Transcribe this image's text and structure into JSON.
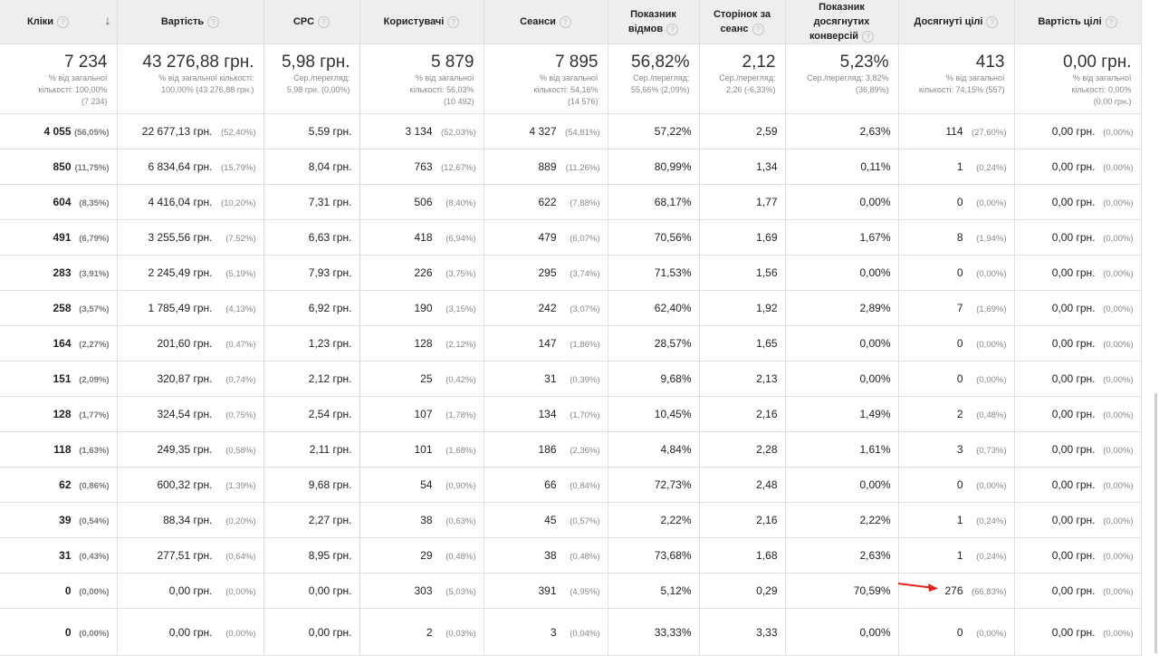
{
  "columns": [
    {
      "label": "Кліки",
      "sorted": true
    },
    {
      "label": "Вартість"
    },
    {
      "label": "CPC"
    },
    {
      "label": "Користувачі"
    },
    {
      "label": "Сеанси"
    },
    {
      "label": "Показник відмов"
    },
    {
      "label": "Сторінок за сеанс"
    },
    {
      "label": "Показник досягнутих конверсій"
    },
    {
      "label": "Досягнуті цілі"
    },
    {
      "label": "Вартість цілі"
    }
  ],
  "help_glyph": "?",
  "sort_glyph": "↓",
  "totals": [
    {
      "value": "7 234",
      "lines": [
        "% від загальної",
        "кількості: 100,00%",
        "(7 234)"
      ]
    },
    {
      "value": "43 276,88 грн.",
      "lines": [
        "% від загальної кількості:",
        "100,00% (43 276,88 грн.)"
      ]
    },
    {
      "value": "5,98 грн.",
      "lines": [
        "Сер./перегляд:",
        "5,98 грн. (0,00%)"
      ]
    },
    {
      "value": "5 879",
      "lines": [
        "% від загальної",
        "кількості: 56,03%",
        "(10 492)"
      ]
    },
    {
      "value": "7 895",
      "lines": [
        "% від загальної",
        "кількості: 54,16%",
        "(14 576)"
      ]
    },
    {
      "value": "56,82%",
      "lines": [
        "Сер./перегляд:",
        "55,66% (2,09%)"
      ]
    },
    {
      "value": "2,12",
      "lines": [
        "Сер./перегляд:",
        "2,26 (-6,33%)"
      ]
    },
    {
      "value": "5,23%",
      "lines": [
        "Сер./перегляд: 3,82%",
        "(36,89%)"
      ]
    },
    {
      "value": "413",
      "lines": [
        "% від загальної",
        "кількості: 74,15% (557)"
      ]
    },
    {
      "value": "0,00 грн.",
      "lines": [
        "% від загальної",
        "кількості: 0,00%",
        "(0,00 грн.)"
      ]
    }
  ],
  "rows": [
    [
      [
        "4 055",
        "(56,05%)"
      ],
      [
        "22 677,13 грн.",
        "(52,40%)"
      ],
      [
        "5,59 грн."
      ],
      [
        "3 134",
        "(52,03%)"
      ],
      [
        "4 327",
        "(54,81%)"
      ],
      [
        "57,22%"
      ],
      [
        "2,59"
      ],
      [
        "2,63%"
      ],
      [
        "114",
        "(27,60%)"
      ],
      [
        "0,00 грн.",
        "(0,00%)"
      ]
    ],
    [
      [
        "850",
        "(11,75%)"
      ],
      [
        "6 834,64 грн.",
        "(15,79%)"
      ],
      [
        "8,04 грн."
      ],
      [
        "763",
        "(12,67%)"
      ],
      [
        "889",
        "(11,26%)"
      ],
      [
        "80,99%"
      ],
      [
        "1,34"
      ],
      [
        "0,11%"
      ],
      [
        "1",
        "(0,24%)"
      ],
      [
        "0,00 грн.",
        "(0,00%)"
      ]
    ],
    [
      [
        "604",
        "(8,35%)"
      ],
      [
        "4 416,04 грн.",
        "(10,20%)"
      ],
      [
        "7,31 грн."
      ],
      [
        "506",
        "(8,40%)"
      ],
      [
        "622",
        "(7,88%)"
      ],
      [
        "68,17%"
      ],
      [
        "1,77"
      ],
      [
        "0,00%"
      ],
      [
        "0",
        "(0,00%)"
      ],
      [
        "0,00 грн.",
        "(0,00%)"
      ]
    ],
    [
      [
        "491",
        "(6,79%)"
      ],
      [
        "3 255,56 грн.",
        "(7,52%)"
      ],
      [
        "6,63 грн."
      ],
      [
        "418",
        "(6,94%)"
      ],
      [
        "479",
        "(6,07%)"
      ],
      [
        "70,56%"
      ],
      [
        "1,69"
      ],
      [
        "1,67%"
      ],
      [
        "8",
        "(1,94%)"
      ],
      [
        "0,00 грн.",
        "(0,00%)"
      ]
    ],
    [
      [
        "283",
        "(3,91%)"
      ],
      [
        "2 245,49 грн.",
        "(5,19%)"
      ],
      [
        "7,93 грн."
      ],
      [
        "226",
        "(3,75%)"
      ],
      [
        "295",
        "(3,74%)"
      ],
      [
        "71,53%"
      ],
      [
        "1,56"
      ],
      [
        "0,00%"
      ],
      [
        "0",
        "(0,00%)"
      ],
      [
        "0,00 грн.",
        "(0,00%)"
      ]
    ],
    [
      [
        "258",
        "(3,57%)"
      ],
      [
        "1 785,49 грн.",
        "(4,13%)"
      ],
      [
        "6,92 грн."
      ],
      [
        "190",
        "(3,15%)"
      ],
      [
        "242",
        "(3,07%)"
      ],
      [
        "62,40%"
      ],
      [
        "1,92"
      ],
      [
        "2,89%"
      ],
      [
        "7",
        "(1,69%)"
      ],
      [
        "0,00 грн.",
        "(0,00%)"
      ]
    ],
    [
      [
        "164",
        "(2,27%)"
      ],
      [
        "201,60 грн.",
        "(0,47%)"
      ],
      [
        "1,23 грн."
      ],
      [
        "128",
        "(2,12%)"
      ],
      [
        "147",
        "(1,86%)"
      ],
      [
        "28,57%"
      ],
      [
        "1,65"
      ],
      [
        "0,00%"
      ],
      [
        "0",
        "(0,00%)"
      ],
      [
        "0,00 грн.",
        "(0,00%)"
      ]
    ],
    [
      [
        "151",
        "(2,09%)"
      ],
      [
        "320,87 грн.",
        "(0,74%)"
      ],
      [
        "2,12 грн."
      ],
      [
        "25",
        "(0,42%)"
      ],
      [
        "31",
        "(0,39%)"
      ],
      [
        "9,68%"
      ],
      [
        "2,13"
      ],
      [
        "0,00%"
      ],
      [
        "0",
        "(0,00%)"
      ],
      [
        "0,00 грн.",
        "(0,00%)"
      ]
    ],
    [
      [
        "128",
        "(1,77%)"
      ],
      [
        "324,54 грн.",
        "(0,75%)"
      ],
      [
        "2,54 грн."
      ],
      [
        "107",
        "(1,78%)"
      ],
      [
        "134",
        "(1,70%)"
      ],
      [
        "10,45%"
      ],
      [
        "2,16"
      ],
      [
        "1,49%"
      ],
      [
        "2",
        "(0,48%)"
      ],
      [
        "0,00 грн.",
        "(0,00%)"
      ]
    ],
    [
      [
        "118",
        "(1,63%)"
      ],
      [
        "249,35 грн.",
        "(0,58%)"
      ],
      [
        "2,11 грн."
      ],
      [
        "101",
        "(1,68%)"
      ],
      [
        "186",
        "(2,36%)"
      ],
      [
        "4,84%"
      ],
      [
        "2,28"
      ],
      [
        "1,61%"
      ],
      [
        "3",
        "(0,73%)"
      ],
      [
        "0,00 грн.",
        "(0,00%)"
      ]
    ],
    [
      [
        "62",
        "(0,86%)"
      ],
      [
        "600,32 грн.",
        "(1,39%)"
      ],
      [
        "9,68 грн."
      ],
      [
        "54",
        "(0,90%)"
      ],
      [
        "66",
        "(0,84%)"
      ],
      [
        "72,73%"
      ],
      [
        "2,48"
      ],
      [
        "0,00%"
      ],
      [
        "0",
        "(0,00%)"
      ],
      [
        "0,00 грн.",
        "(0,00%)"
      ]
    ],
    [
      [
        "39",
        "(0,54%)"
      ],
      [
        "88,34 грн.",
        "(0,20%)"
      ],
      [
        "2,27 грн."
      ],
      [
        "38",
        "(0,63%)"
      ],
      [
        "45",
        "(0,57%)"
      ],
      [
        "2,22%"
      ],
      [
        "2,16"
      ],
      [
        "2,22%"
      ],
      [
        "1",
        "(0,24%)"
      ],
      [
        "0,00 грн.",
        "(0,00%)"
      ]
    ],
    [
      [
        "31",
        "(0,43%)"
      ],
      [
        "277,51 грн.",
        "(0,64%)"
      ],
      [
        "8,95 грн."
      ],
      [
        "29",
        "(0,48%)"
      ],
      [
        "38",
        "(0,48%)"
      ],
      [
        "73,68%"
      ],
      [
        "1,68"
      ],
      [
        "2,63%"
      ],
      [
        "1",
        "(0,24%)"
      ],
      [
        "0,00 грн.",
        "(0,00%)"
      ]
    ],
    [
      [
        "0",
        "(0,00%)"
      ],
      [
        "0,00 грн.",
        "(0,00%)"
      ],
      [
        "0,00 грн."
      ],
      [
        "303",
        "(5,03%)"
      ],
      [
        "391",
        "(4,95%)"
      ],
      [
        "5,12%"
      ],
      [
        "0,29"
      ],
      [
        "70,59%"
      ],
      [
        "276",
        "(66,83%)"
      ],
      [
        "0,00 грн.",
        "(0,00%)"
      ]
    ],
    [
      [
        "0",
        "(0,00%)"
      ],
      [
        "0,00 грн.",
        "(0,00%)"
      ],
      [
        "0,00 грн."
      ],
      [
        "2",
        "(0,03%)"
      ],
      [
        "3",
        "(0,04%)"
      ],
      [
        "33,33%"
      ],
      [
        "3,33"
      ],
      [
        "0,00%"
      ],
      [
        "0",
        "(0,00%)"
      ],
      [
        "0,00 грн.",
        "(0,00%)"
      ]
    ]
  ],
  "colors": {
    "header_bg": "#eeeeee",
    "grid": "#e0e0e0",
    "arrow": "#e0231c",
    "muted": "#888888"
  }
}
